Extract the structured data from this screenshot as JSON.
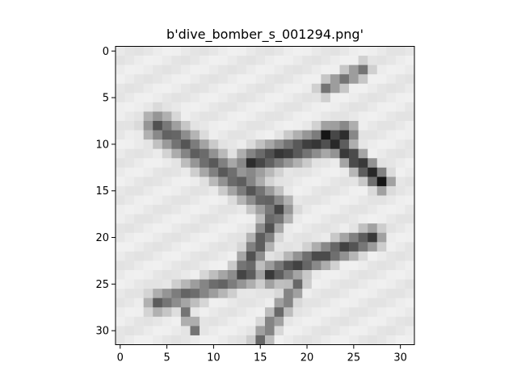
{
  "title": "b'dive_bomber_s_001294.png'",
  "image": {
    "grid_width": 32,
    "grid_height": 32,
    "colormap": "gray",
    "subject": "dive bomber aircraft silhouette (grayscale, low resolution)"
  },
  "axes": {
    "xlim": [
      -0.5,
      31.5
    ],
    "ylim": [
      31.5,
      -0.5
    ],
    "x_ticks": [
      0,
      5,
      10,
      15,
      20,
      25,
      30
    ],
    "y_ticks": [
      0,
      5,
      10,
      15,
      20,
      25,
      30
    ]
  },
  "colors": {
    "background": "#ffffff",
    "axis": "#000000"
  }
}
